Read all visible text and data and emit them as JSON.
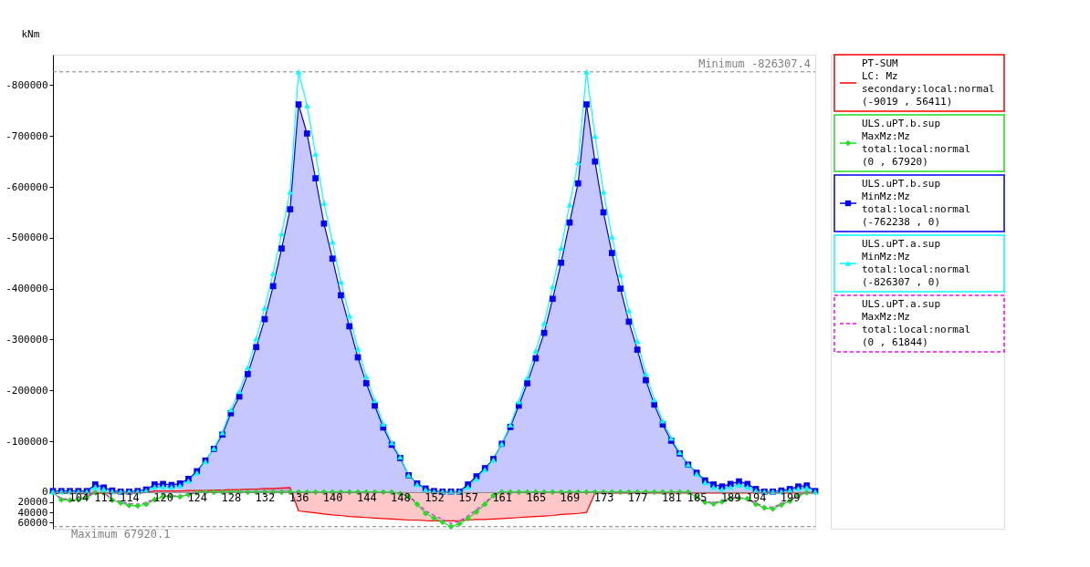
{
  "chart_data": {
    "type": "line",
    "ylabel": "kNm",
    "categories": [
      null,
      null,
      null,
      "104",
      null,
      null,
      "111",
      null,
      null,
      "114",
      null,
      null,
      null,
      "120",
      null,
      null,
      null,
      "124",
      null,
      null,
      null,
      "128",
      null,
      null,
      null,
      "132",
      null,
      null,
      null,
      "136",
      null,
      null,
      null,
      "140",
      null,
      null,
      null,
      "144",
      null,
      null,
      null,
      "148",
      null,
      null,
      null,
      "152",
      null,
      null,
      null,
      "157",
      null,
      null,
      null,
      "161",
      null,
      null,
      null,
      "165",
      null,
      null,
      null,
      "169",
      null,
      null,
      null,
      "173",
      null,
      null,
      null,
      "177",
      null,
      null,
      null,
      "181",
      null,
      null,
      "185",
      null,
      null,
      null,
      "189",
      null,
      null,
      "194",
      null,
      null,
      null,
      "199",
      null,
      null,
      null
    ],
    "ylim": [
      72000,
      -860000
    ],
    "yticks": [
      -800000,
      -700000,
      -600000,
      -500000,
      -400000,
      -300000,
      -200000,
      -100000,
      0,
      20000,
      40000,
      60000
    ],
    "grid": false,
    "legend": "right",
    "series": [
      {
        "name": "PT-SUM\nLC: Mz\nsecondary:local:normal\n(-9019 , 56411)",
        "type": "area",
        "marker": "none",
        "color": "#ff0000",
        "values": [
          3000,
          3000,
          2000,
          3000,
          4000,
          3000,
          2000,
          2000,
          2000,
          2000,
          2000,
          1000,
          -2000,
          -2000,
          -2000,
          -2000,
          -3000,
          -3000,
          -3000,
          -4000,
          -4000,
          -5000,
          -5000,
          -6000,
          -6000,
          -7000,
          -7000,
          -8000,
          -9019,
          37000,
          39000,
          41000,
          43000,
          45000,
          46000,
          48000,
          49000,
          50000,
          51000,
          52000,
          53000,
          54000,
          55000,
          55000,
          56000,
          56411,
          56411,
          56411,
          56000,
          55000,
          54000,
          54000,
          53000,
          52000,
          51000,
          50000,
          49000,
          48000,
          47000,
          46000,
          44000,
          43000,
          42000,
          40000,
          2000,
          2000,
          2000,
          2000,
          2000,
          2000,
          2000,
          2000,
          2000,
          2000,
          2000,
          2000,
          2000,
          2000,
          2000,
          2000,
          2000,
          2000,
          2000,
          2000,
          2000,
          2000,
          2000,
          2000,
          2000,
          2000,
          2000
        ]
      },
      {
        "name": "ULS.uPT.b.sup\nMaxMz:Mz\ntotal:local:normal\n(0 , 67920)",
        "type": "line",
        "marker": "diamond",
        "color": "#22dd22",
        "values": [
          0,
          15000,
          16000,
          15000,
          10000,
          1000,
          1000,
          16000,
          21000,
          26000,
          27000,
          24000,
          15000,
          9000,
          8000,
          9000,
          5000,
          1000,
          0,
          0,
          0,
          0,
          0,
          0,
          0,
          0,
          0,
          0,
          0,
          0,
          0,
          0,
          0,
          0,
          0,
          0,
          0,
          0,
          0,
          0,
          0,
          3000,
          9000,
          24000,
          42000,
          51000,
          59000,
          67920,
          62000,
          52000,
          39000,
          24000,
          7000,
          0,
          0,
          0,
          0,
          0,
          0,
          0,
          0,
          0,
          0,
          0,
          0,
          0,
          0,
          0,
          0,
          0,
          0,
          0,
          0,
          0,
          0,
          0,
          10000,
          20000,
          23000,
          19000,
          12000,
          12000,
          13000,
          24000,
          31000,
          33000,
          25000,
          18000,
          7000,
          1000,
          0
        ]
      },
      {
        "name": "ULS.uPT.b.sup\nMinMz:Mz\ntotal:local:normal\n(-762238 , 0)",
        "type": "area",
        "marker": "square",
        "color": "#0000ff",
        "values": [
          -2000,
          -2000,
          -2000,
          -2000,
          -2000,
          -15000,
          -9000,
          -3000,
          -1000,
          -1000,
          -2000,
          -5000,
          -15000,
          -16000,
          -14000,
          -17000,
          -26000,
          -41000,
          -62000,
          -85000,
          -113000,
          -155000,
          -188000,
          -232000,
          -285000,
          -340000,
          -405000,
          -479000,
          -556000,
          -762238,
          -705000,
          -617000,
          -528000,
          -459000,
          -387000,
          -326000,
          -265000,
          -214000,
          -170000,
          -127000,
          -93000,
          -67000,
          -33000,
          -17000,
          -7000,
          -2000,
          -1000,
          -1000,
          -1000,
          -15000,
          -31000,
          -47000,
          -65000,
          -95000,
          -128000,
          -170000,
          -214000,
          -263000,
          -313000,
          -380000,
          -451000,
          -530000,
          -607000,
          -762238,
          -650000,
          -550000,
          -470000,
          -400000,
          -335000,
          -280000,
          -220000,
          -172000,
          -133000,
          -101000,
          -76000,
          -54000,
          -38000,
          -23000,
          -15000,
          -11000,
          -16000,
          -21000,
          -16000,
          -6000,
          -1000,
          -1000,
          -3000,
          -6000,
          -11000,
          -13000,
          -2000
        ]
      },
      {
        "name": "ULS.uPT.a.sup\nMinMz:Mz\ntotal:local:normal\n(-826307 , 0)",
        "type": "line",
        "marker": "triangle",
        "color": "#00ffff",
        "values": [
          -1000,
          -1000,
          -1000,
          -1000,
          -1000,
          -10000,
          -6000,
          -1000,
          -1000,
          -1000,
          -1000,
          -3000,
          -10000,
          -11000,
          -10000,
          -13000,
          -22000,
          -38000,
          -60000,
          -86000,
          -117000,
          -162000,
          -198000,
          -245000,
          -302000,
          -362000,
          -430000,
          -508000,
          -590000,
          -826307,
          -760000,
          -665000,
          -568000,
          -492000,
          -413000,
          -347000,
          -282000,
          -227000,
          -180000,
          -134000,
          -97000,
          -69000,
          -33000,
          -15000,
          -5000,
          -1000,
          -1000,
          -1000,
          -1000,
          -10000,
          -26000,
          -44000,
          -63000,
          -95000,
          -132000,
          -178000,
          -225000,
          -278000,
          -332000,
          -404000,
          -480000,
          -565000,
          -648000,
          -826307,
          -700000,
          -590000,
          -502000,
          -427000,
          -357000,
          -297000,
          -233000,
          -182000,
          -140000,
          -106000,
          -78000,
          -54000,
          -36000,
          -19000,
          -10000,
          -6000,
          -10000,
          -14000,
          -10000,
          -3000,
          -1000,
          -1000,
          -1000,
          -4000,
          -7000,
          -9000,
          -1000
        ]
      },
      {
        "name": "ULS.uPT.a.sup\nMaxMz:Mz\ntotal:local:normal\n(0 , 61844)",
        "type": "line",
        "marker": "none",
        "line_style": "dashed",
        "color": "#ff00ff",
        "values": [
          0,
          13000,
          14000,
          13000,
          9000,
          1000,
          1000,
          14000,
          19000,
          23000,
          24000,
          21000,
          13000,
          8000,
          7000,
          8000,
          4000,
          1000,
          null,
          null,
          null,
          null,
          null,
          null,
          null,
          null,
          null,
          null,
          null,
          null,
          null,
          null,
          null,
          null,
          null,
          null,
          null,
          null,
          null,
          null,
          null,
          3000,
          8000,
          21000,
          37000,
          46000,
          54000,
          61844,
          57000,
          47000,
          35000,
          21000,
          6000,
          null,
          null,
          null,
          null,
          null,
          null,
          null,
          null,
          null,
          null,
          null,
          null,
          null,
          null,
          null,
          null,
          null,
          null,
          null,
          null,
          null,
          null,
          null,
          9000,
          18000,
          21000,
          17000,
          11000,
          11000,
          12000,
          22000,
          28000,
          30000,
          23000,
          16000,
          6000,
          1000,
          0
        ]
      }
    ],
    "ref_lines": [
      {
        "axis": "y",
        "value": -826307.4,
        "label": "Minimum  -826307.4",
        "color": "#808080",
        "line_style": "dashed"
      },
      {
        "axis": "y",
        "value": 67920.1,
        "label": "Maximum  67920.1",
        "color": "#808080",
        "line_style": "dashed"
      }
    ]
  }
}
